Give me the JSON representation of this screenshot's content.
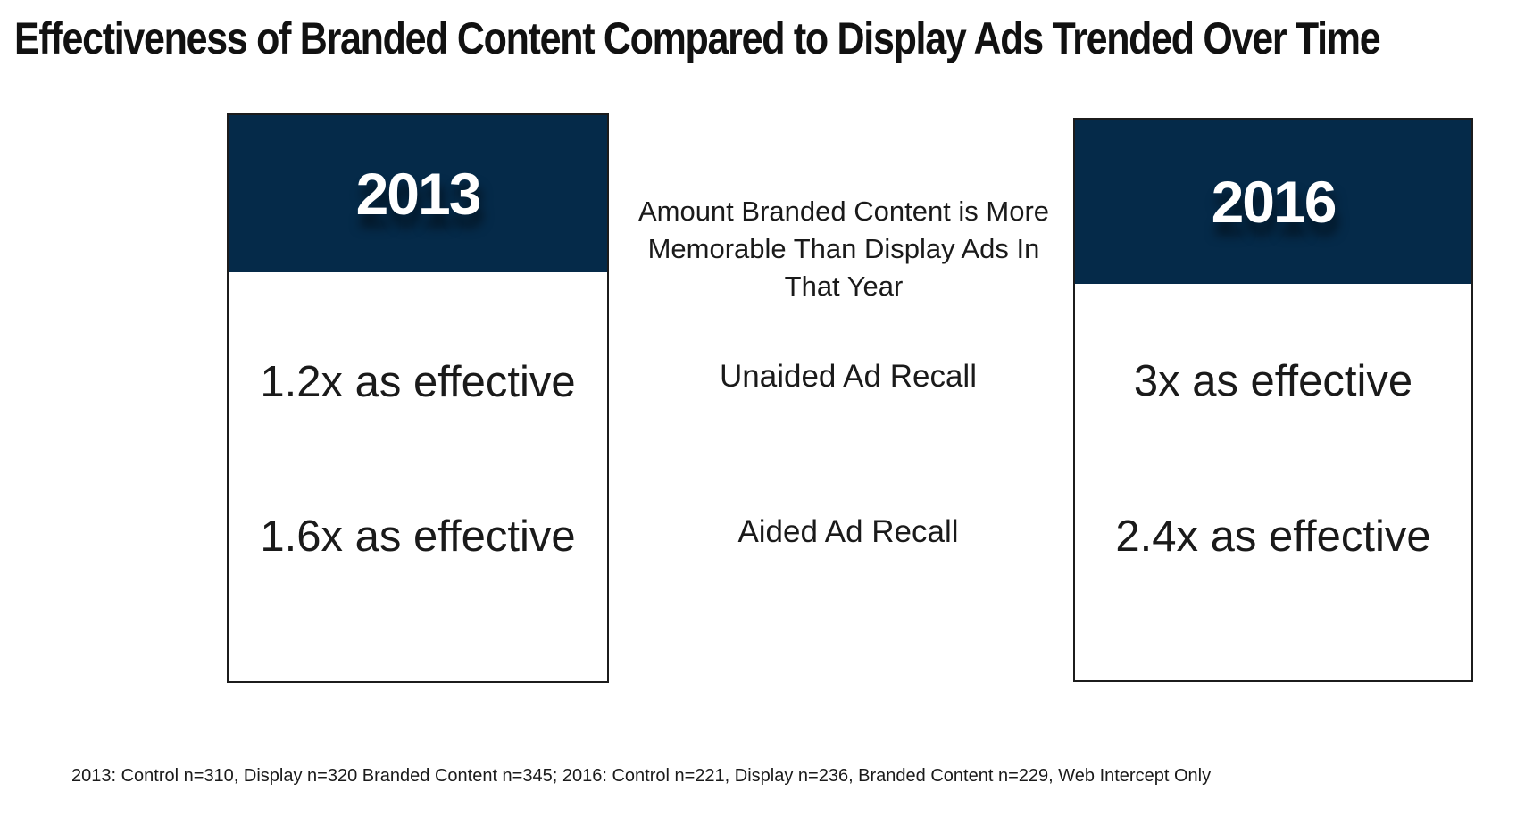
{
  "title": "Effectiveness of Branded Content Compared to Display Ads Trended Over Time",
  "center": {
    "heading": "Amount Branded Content is More Memorable Than Display Ads In That Year",
    "metrics": [
      "Unaided Ad Recall",
      "Aided Ad Recall"
    ]
  },
  "cards": [
    {
      "year": "2013",
      "unaided": "1.2x as effective",
      "aided": "1.6x as effective"
    },
    {
      "year": "2016",
      "unaided": "3x as effective",
      "aided": "2.4x as effective"
    }
  ],
  "footnote": "2013: Control n=310, Display n=320 Branded Content n=345; 2016: Control n=221, Display n=236, Branded Content n=229, Web Intercept Only",
  "colors": {
    "header_bg": "#052a49",
    "header_text": "#ffffff",
    "border": "#1c1c1c"
  }
}
